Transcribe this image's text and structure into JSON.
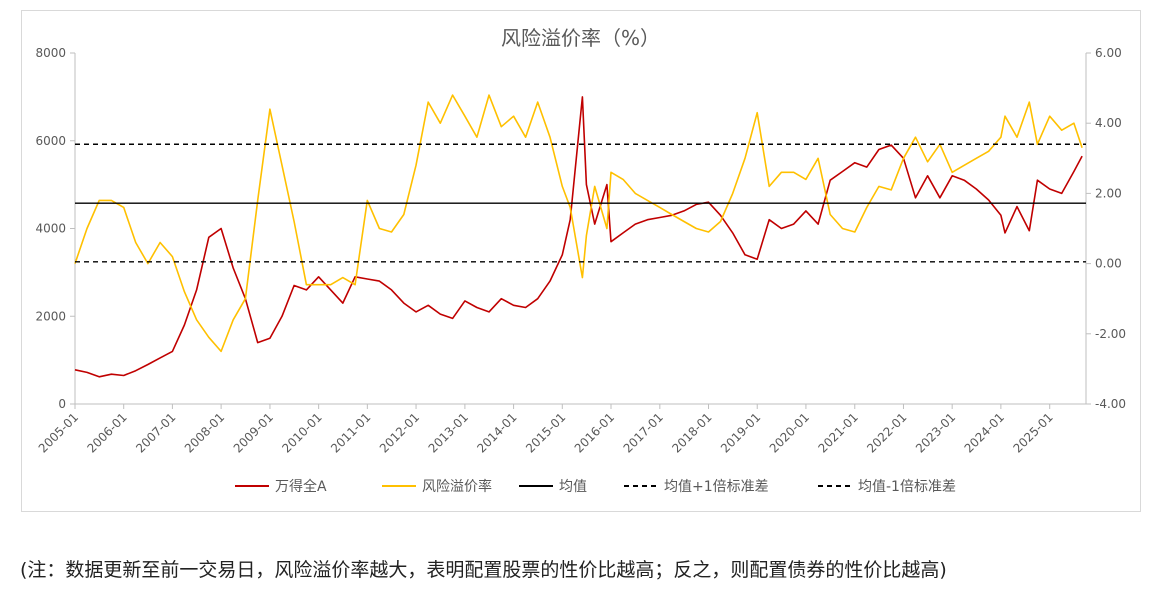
{
  "chart_data": {
    "type": "line",
    "title": "风险溢价率（%）",
    "x_labels": [
      "2005-01",
      "2006-01",
      "2007-01",
      "2008-01",
      "2009-01",
      "2010-01",
      "2011-01",
      "2012-01",
      "2013-01",
      "2014-01",
      "2015-01",
      "2016-01",
      "2017-01",
      "2018-01",
      "2019-01",
      "2020-01",
      "2021-01",
      "2022-01",
      "2023-01",
      "2024-01",
      "2025-01"
    ],
    "x_range": [
      "2005-01-01",
      "2025-09-30"
    ],
    "y_left": {
      "ticks": [
        "0",
        "2000",
        "4000",
        "6000",
        "8000"
      ],
      "lim": [
        0,
        8000
      ]
    },
    "y_right": {
      "ticks": [
        "-4.00",
        "-2.00",
        "0.00",
        "2.00",
        "4.00",
        "6.00"
      ],
      "lim": [
        -4,
        6
      ]
    },
    "reference_lines": [
      {
        "name": "均值",
        "value": 1.72,
        "style": "solid",
        "axis": "right"
      },
      {
        "name": "均值+1倍标准差",
        "value": 3.4,
        "style": "dashed",
        "axis": "right"
      },
      {
        "name": "均值-1倍标准差",
        "value": 0.05,
        "style": "dashed",
        "axis": "right"
      }
    ],
    "series": [
      {
        "name": "万得全A",
        "axis": "left",
        "color": "#c00000",
        "points": [
          [
            "2005-01",
            780
          ],
          [
            "2005-04",
            720
          ],
          [
            "2005-07",
            620
          ],
          [
            "2005-10",
            680
          ],
          [
            "2006-01",
            650
          ],
          [
            "2006-04",
            760
          ],
          [
            "2006-07",
            900
          ],
          [
            "2006-10",
            1050
          ],
          [
            "2007-01",
            1200
          ],
          [
            "2007-04",
            1800
          ],
          [
            "2007-07",
            2600
          ],
          [
            "2007-10",
            3800
          ],
          [
            "2008-01",
            4000
          ],
          [
            "2008-04",
            3100
          ],
          [
            "2008-07",
            2400
          ],
          [
            "2008-10",
            1400
          ],
          [
            "2009-01",
            1500
          ],
          [
            "2009-04",
            2000
          ],
          [
            "2009-07",
            2700
          ],
          [
            "2009-10",
            2600
          ],
          [
            "2010-01",
            2900
          ],
          [
            "2010-04",
            2600
          ],
          [
            "2010-07",
            2300
          ],
          [
            "2010-10",
            2900
          ],
          [
            "2011-01",
            2850
          ],
          [
            "2011-04",
            2800
          ],
          [
            "2011-07",
            2600
          ],
          [
            "2011-10",
            2300
          ],
          [
            "2012-01",
            2100
          ],
          [
            "2012-04",
            2250
          ],
          [
            "2012-07",
            2050
          ],
          [
            "2012-10",
            1950
          ],
          [
            "2013-01",
            2350
          ],
          [
            "2013-04",
            2200
          ],
          [
            "2013-07",
            2100
          ],
          [
            "2013-10",
            2400
          ],
          [
            "2014-01",
            2250
          ],
          [
            "2014-04",
            2200
          ],
          [
            "2014-07",
            2400
          ],
          [
            "2014-10",
            2800
          ],
          [
            "2015-01",
            3400
          ],
          [
            "2015-03",
            4200
          ],
          [
            "2015-06",
            7000
          ],
          [
            "2015-07",
            5000
          ],
          [
            "2015-09",
            4100
          ],
          [
            "2015-12",
            5000
          ],
          [
            "2016-01",
            3700
          ],
          [
            "2016-04",
            3900
          ],
          [
            "2016-07",
            4100
          ],
          [
            "2016-10",
            4200
          ],
          [
            "2017-01",
            4250
          ],
          [
            "2017-04",
            4300
          ],
          [
            "2017-07",
            4400
          ],
          [
            "2017-10",
            4550
          ],
          [
            "2018-01",
            4600
          ],
          [
            "2018-04",
            4300
          ],
          [
            "2018-07",
            3900
          ],
          [
            "2018-10",
            3400
          ],
          [
            "2019-01",
            3300
          ],
          [
            "2019-04",
            4200
          ],
          [
            "2019-07",
            4000
          ],
          [
            "2019-10",
            4100
          ],
          [
            "2020-01",
            4400
          ],
          [
            "2020-04",
            4100
          ],
          [
            "2020-07",
            5100
          ],
          [
            "2020-10",
            5300
          ],
          [
            "2021-01",
            5500
          ],
          [
            "2021-04",
            5400
          ],
          [
            "2021-07",
            5800
          ],
          [
            "2021-10",
            5900
          ],
          [
            "2022-01",
            5600
          ],
          [
            "2022-04",
            4700
          ],
          [
            "2022-07",
            5200
          ],
          [
            "2022-10",
            4700
          ],
          [
            "2023-01",
            5200
          ],
          [
            "2023-04",
            5100
          ],
          [
            "2023-07",
            4900
          ],
          [
            "2023-10",
            4650
          ],
          [
            "2024-01",
            4300
          ],
          [
            "2024-02",
            3900
          ],
          [
            "2024-05",
            4500
          ],
          [
            "2024-08",
            3950
          ],
          [
            "2024-10",
            5100
          ],
          [
            "2025-01",
            4900
          ],
          [
            "2025-04",
            4800
          ],
          [
            "2025-07",
            5300
          ],
          [
            "2025-09",
            5650
          ]
        ]
      },
      {
        "name": "风险溢价率",
        "axis": "right",
        "color": "#ffc000",
        "points": [
          [
            "2005-01",
            0.0
          ],
          [
            "2005-04",
            1.0
          ],
          [
            "2005-07",
            1.8
          ],
          [
            "2005-10",
            1.8
          ],
          [
            "2006-01",
            1.6
          ],
          [
            "2006-04",
            0.6
          ],
          [
            "2006-07",
            0.0
          ],
          [
            "2006-10",
            0.6
          ],
          [
            "2007-01",
            0.2
          ],
          [
            "2007-04",
            -0.8
          ],
          [
            "2007-07",
            -1.6
          ],
          [
            "2007-10",
            -2.1
          ],
          [
            "2008-01",
            -2.5
          ],
          [
            "2008-04",
            -1.6
          ],
          [
            "2008-07",
            -1.0
          ],
          [
            "2008-10",
            1.8
          ],
          [
            "2009-01",
            4.4
          ],
          [
            "2009-04",
            2.8
          ],
          [
            "2009-07",
            1.2
          ],
          [
            "2009-10",
            -0.6
          ],
          [
            "2010-01",
            -0.6
          ],
          [
            "2010-04",
            -0.6
          ],
          [
            "2010-07",
            -0.4
          ],
          [
            "2010-10",
            -0.6
          ],
          [
            "2011-01",
            1.8
          ],
          [
            "2011-04",
            1.0
          ],
          [
            "2011-07",
            0.9
          ],
          [
            "2011-10",
            1.4
          ],
          [
            "2012-01",
            2.8
          ],
          [
            "2012-04",
            4.6
          ],
          [
            "2012-07",
            4.0
          ],
          [
            "2012-10",
            4.8
          ],
          [
            "2013-01",
            4.2
          ],
          [
            "2013-04",
            3.6
          ],
          [
            "2013-07",
            4.8
          ],
          [
            "2013-10",
            3.9
          ],
          [
            "2014-01",
            4.2
          ],
          [
            "2014-04",
            3.6
          ],
          [
            "2014-07",
            4.6
          ],
          [
            "2014-10",
            3.6
          ],
          [
            "2015-01",
            2.2
          ],
          [
            "2015-03",
            1.6
          ],
          [
            "2015-06",
            -0.4
          ],
          [
            "2015-07",
            0.8
          ],
          [
            "2015-09",
            2.2
          ],
          [
            "2015-12",
            1.0
          ],
          [
            "2016-01",
            2.6
          ],
          [
            "2016-04",
            2.4
          ],
          [
            "2016-07",
            2.0
          ],
          [
            "2016-10",
            1.8
          ],
          [
            "2017-01",
            1.6
          ],
          [
            "2017-04",
            1.4
          ],
          [
            "2017-07",
            1.2
          ],
          [
            "2017-10",
            1.0
          ],
          [
            "2018-01",
            0.9
          ],
          [
            "2018-04",
            1.2
          ],
          [
            "2018-07",
            2.0
          ],
          [
            "2018-10",
            3.0
          ],
          [
            "2019-01",
            4.3
          ],
          [
            "2019-04",
            2.2
          ],
          [
            "2019-07",
            2.6
          ],
          [
            "2019-10",
            2.6
          ],
          [
            "2020-01",
            2.4
          ],
          [
            "2020-04",
            3.0
          ],
          [
            "2020-07",
            1.4
          ],
          [
            "2020-10",
            1.0
          ],
          [
            "2021-01",
            0.9
          ],
          [
            "2021-04",
            1.6
          ],
          [
            "2021-07",
            2.2
          ],
          [
            "2021-10",
            2.1
          ],
          [
            "2022-01",
            3.0
          ],
          [
            "2022-04",
            3.6
          ],
          [
            "2022-07",
            2.9
          ],
          [
            "2022-10",
            3.4
          ],
          [
            "2023-01",
            2.6
          ],
          [
            "2023-04",
            2.8
          ],
          [
            "2023-07",
            3.0
          ],
          [
            "2023-10",
            3.2
          ],
          [
            "2024-01",
            3.6
          ],
          [
            "2024-02",
            4.2
          ],
          [
            "2024-05",
            3.6
          ],
          [
            "2024-08",
            4.6
          ],
          [
            "2024-10",
            3.4
          ],
          [
            "2025-01",
            4.2
          ],
          [
            "2025-04",
            3.8
          ],
          [
            "2025-07",
            4.0
          ],
          [
            "2025-09",
            3.3
          ]
        ]
      }
    ],
    "legend": [
      {
        "label": "万得全A",
        "color": "#c00000",
        "style": "solid"
      },
      {
        "label": "风险溢价率",
        "color": "#ffc000",
        "style": "solid"
      },
      {
        "label": "均值",
        "color": "#000000",
        "style": "solid"
      },
      {
        "label": "均值+1倍标准差",
        "color": "#000000",
        "style": "dashed"
      },
      {
        "label": "均值-1倍标准差",
        "color": "#000000",
        "style": "dashed"
      }
    ],
    "legend_position": "bottom",
    "grid": false
  },
  "footnote": "(注：数据更新至前一交易日，风险溢价率越大，表明配置股票的性价比越高；反之，则配置债券的性价比越高)"
}
